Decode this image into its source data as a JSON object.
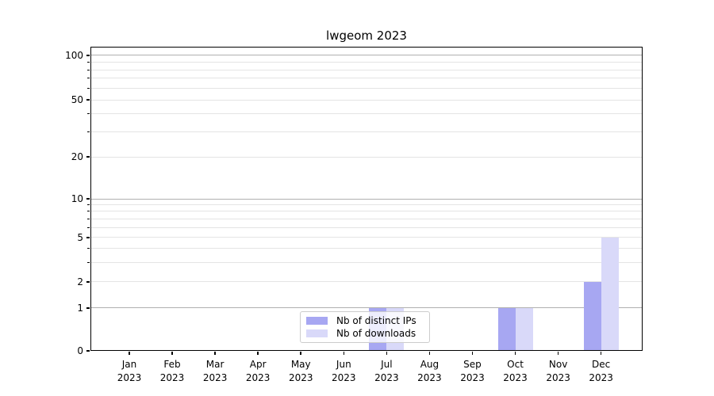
{
  "chart_data": {
    "type": "bar",
    "title": "lwgeom 2023",
    "categories": [
      "Jan",
      "Feb",
      "Mar",
      "Apr",
      "May",
      "Jun",
      "Jul",
      "Aug",
      "Sep",
      "Oct",
      "Nov",
      "Dec"
    ],
    "year": "2023",
    "series": [
      {
        "name": "Nb of distinct IPs",
        "color": "#a7a7f2",
        "values": [
          0,
          0,
          0,
          0,
          0,
          0,
          1,
          0,
          0,
          1,
          0,
          2
        ]
      },
      {
        "name": "Nb of downloads",
        "color": "#d9d9f9",
        "values": [
          0,
          0,
          0,
          0,
          0,
          0,
          1,
          0,
          0,
          1,
          0,
          5
        ]
      }
    ],
    "xlabel": "",
    "ylabel": "",
    "y_axis": {
      "scale": "symlog",
      "tick_values": [
        0,
        1,
        2,
        5,
        10,
        20,
        50,
        100
      ],
      "major_grid_values": [
        1,
        10,
        100
      ],
      "minor_grid_values": [
        2,
        3,
        4,
        5,
        6,
        7,
        8,
        9,
        20,
        30,
        40,
        50,
        60,
        70,
        80,
        90
      ],
      "anchors": {
        "0": 1.0,
        "1": 0.859,
        "2": 0.7734,
        "5": 0.6276,
        "10": 0.5,
        "20": 0.362,
        "50": 0.1745,
        "100": 0.0286
      },
      "ylim": [
        0,
        110
      ]
    },
    "grid": true,
    "legend": {
      "position": "lower center",
      "labels": [
        "Nb of distinct IPs",
        "Nb of downloads"
      ]
    },
    "colors": {
      "major_grid": "#b0b0b0",
      "minor_grid": "#e4e4e4",
      "spine": "#000000",
      "text": "#000000",
      "legend_border": "#cccccc"
    }
  }
}
